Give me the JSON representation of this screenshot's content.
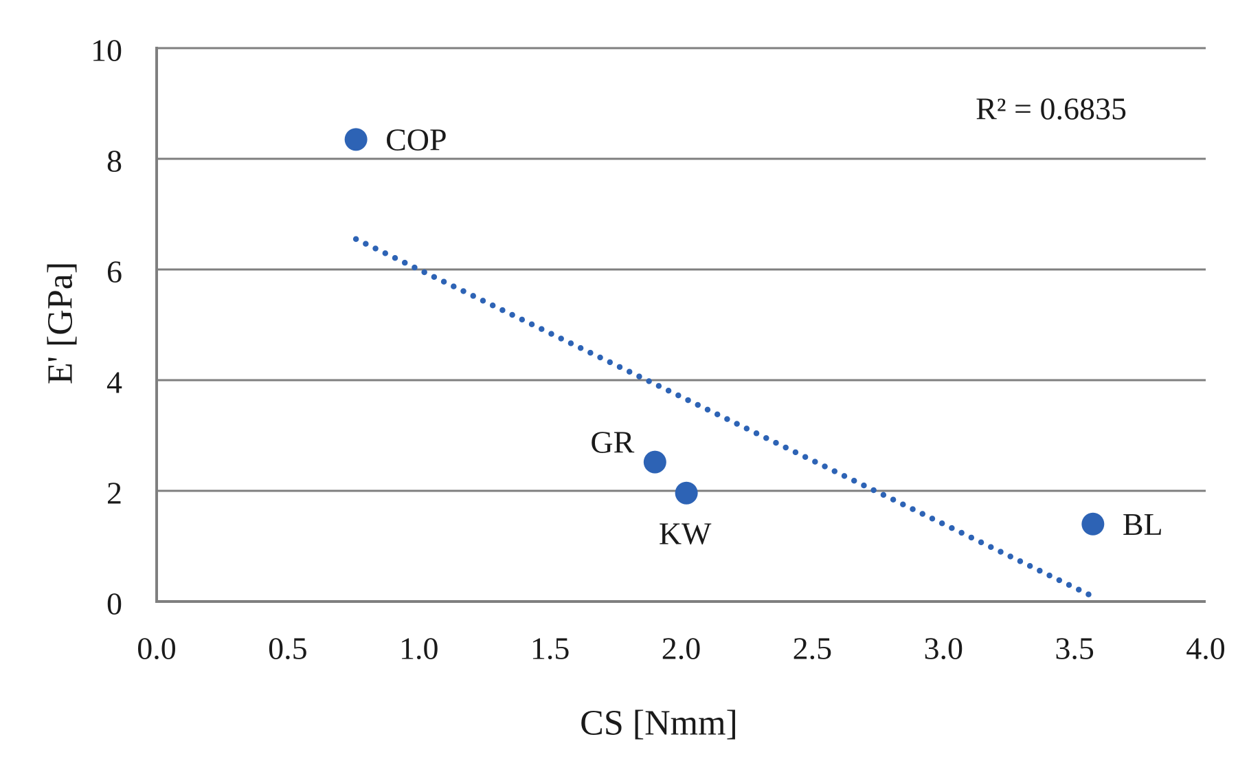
{
  "chart_data": {
    "type": "scatter",
    "title": "",
    "xlabel": "CS [Nmm]",
    "ylabel": "E' [GPa]",
    "xlim": [
      0.0,
      4.0
    ],
    "ylim": [
      0,
      10
    ],
    "x_tick_labels": [
      "0.0",
      "0.5",
      "1.0",
      "1.5",
      "2.0",
      "2.5",
      "3.0",
      "3.5",
      "4.0"
    ],
    "y_tick_labels": [
      "0",
      "2",
      "4",
      "6",
      "8",
      "10"
    ],
    "grid": "horizontal",
    "legend": "none",
    "annotation": "R² = 0.6835",
    "r_squared": 0.6835,
    "marker_color": "#2d63b5",
    "axis_color": "#7f7f7f",
    "text_color": "#1a1a1a",
    "points": [
      {
        "label": "COP",
        "x": 0.76,
        "y": 8.35,
        "label_position": "right"
      },
      {
        "label": "GR",
        "x": 1.9,
        "y": 2.52,
        "label_position": "above-left"
      },
      {
        "label": "KW",
        "x": 2.02,
        "y": 1.96,
        "label_position": "below"
      },
      {
        "label": "BL",
        "x": 3.57,
        "y": 1.4,
        "label_position": "right"
      }
    ],
    "trendline": {
      "style": "dotted",
      "x1": 0.76,
      "y1": 6.55,
      "x2": 3.57,
      "y2": 0.09
    }
  }
}
